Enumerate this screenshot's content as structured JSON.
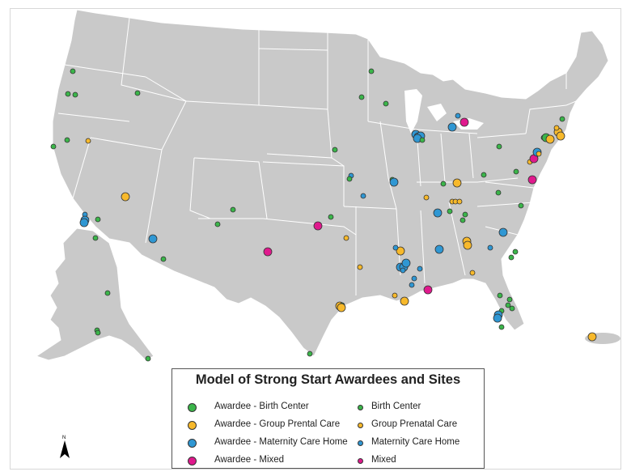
{
  "legend": {
    "title": "Model of Strong Start Awardees and Sites",
    "items": [
      {
        "label": "Awardee - Birth Center",
        "color": "#3bb54a",
        "kind": "awardee"
      },
      {
        "label": "Birth Center",
        "color": "#3bb54a",
        "kind": "site"
      },
      {
        "label": "Awardee - Group Prental Care",
        "color": "#f7b92b",
        "kind": "awardee"
      },
      {
        "label": "Group Prenatal Care",
        "color": "#f7b92b",
        "kind": "site"
      },
      {
        "label": "Awardee - Maternity Care Home",
        "color": "#2f97d3",
        "kind": "awardee"
      },
      {
        "label": "Maternity Care Home",
        "color": "#2f97d3",
        "kind": "site"
      },
      {
        "label": "Awardee - Mixed",
        "color": "#e0198d",
        "kind": "awardee"
      },
      {
        "label": "Mixed",
        "color": "#e0198d",
        "kind": "site"
      }
    ]
  },
  "north_label": "N",
  "colors": {
    "land": "#c9c9c9",
    "border": "#ffffff",
    "outline": "#333333"
  }
}
